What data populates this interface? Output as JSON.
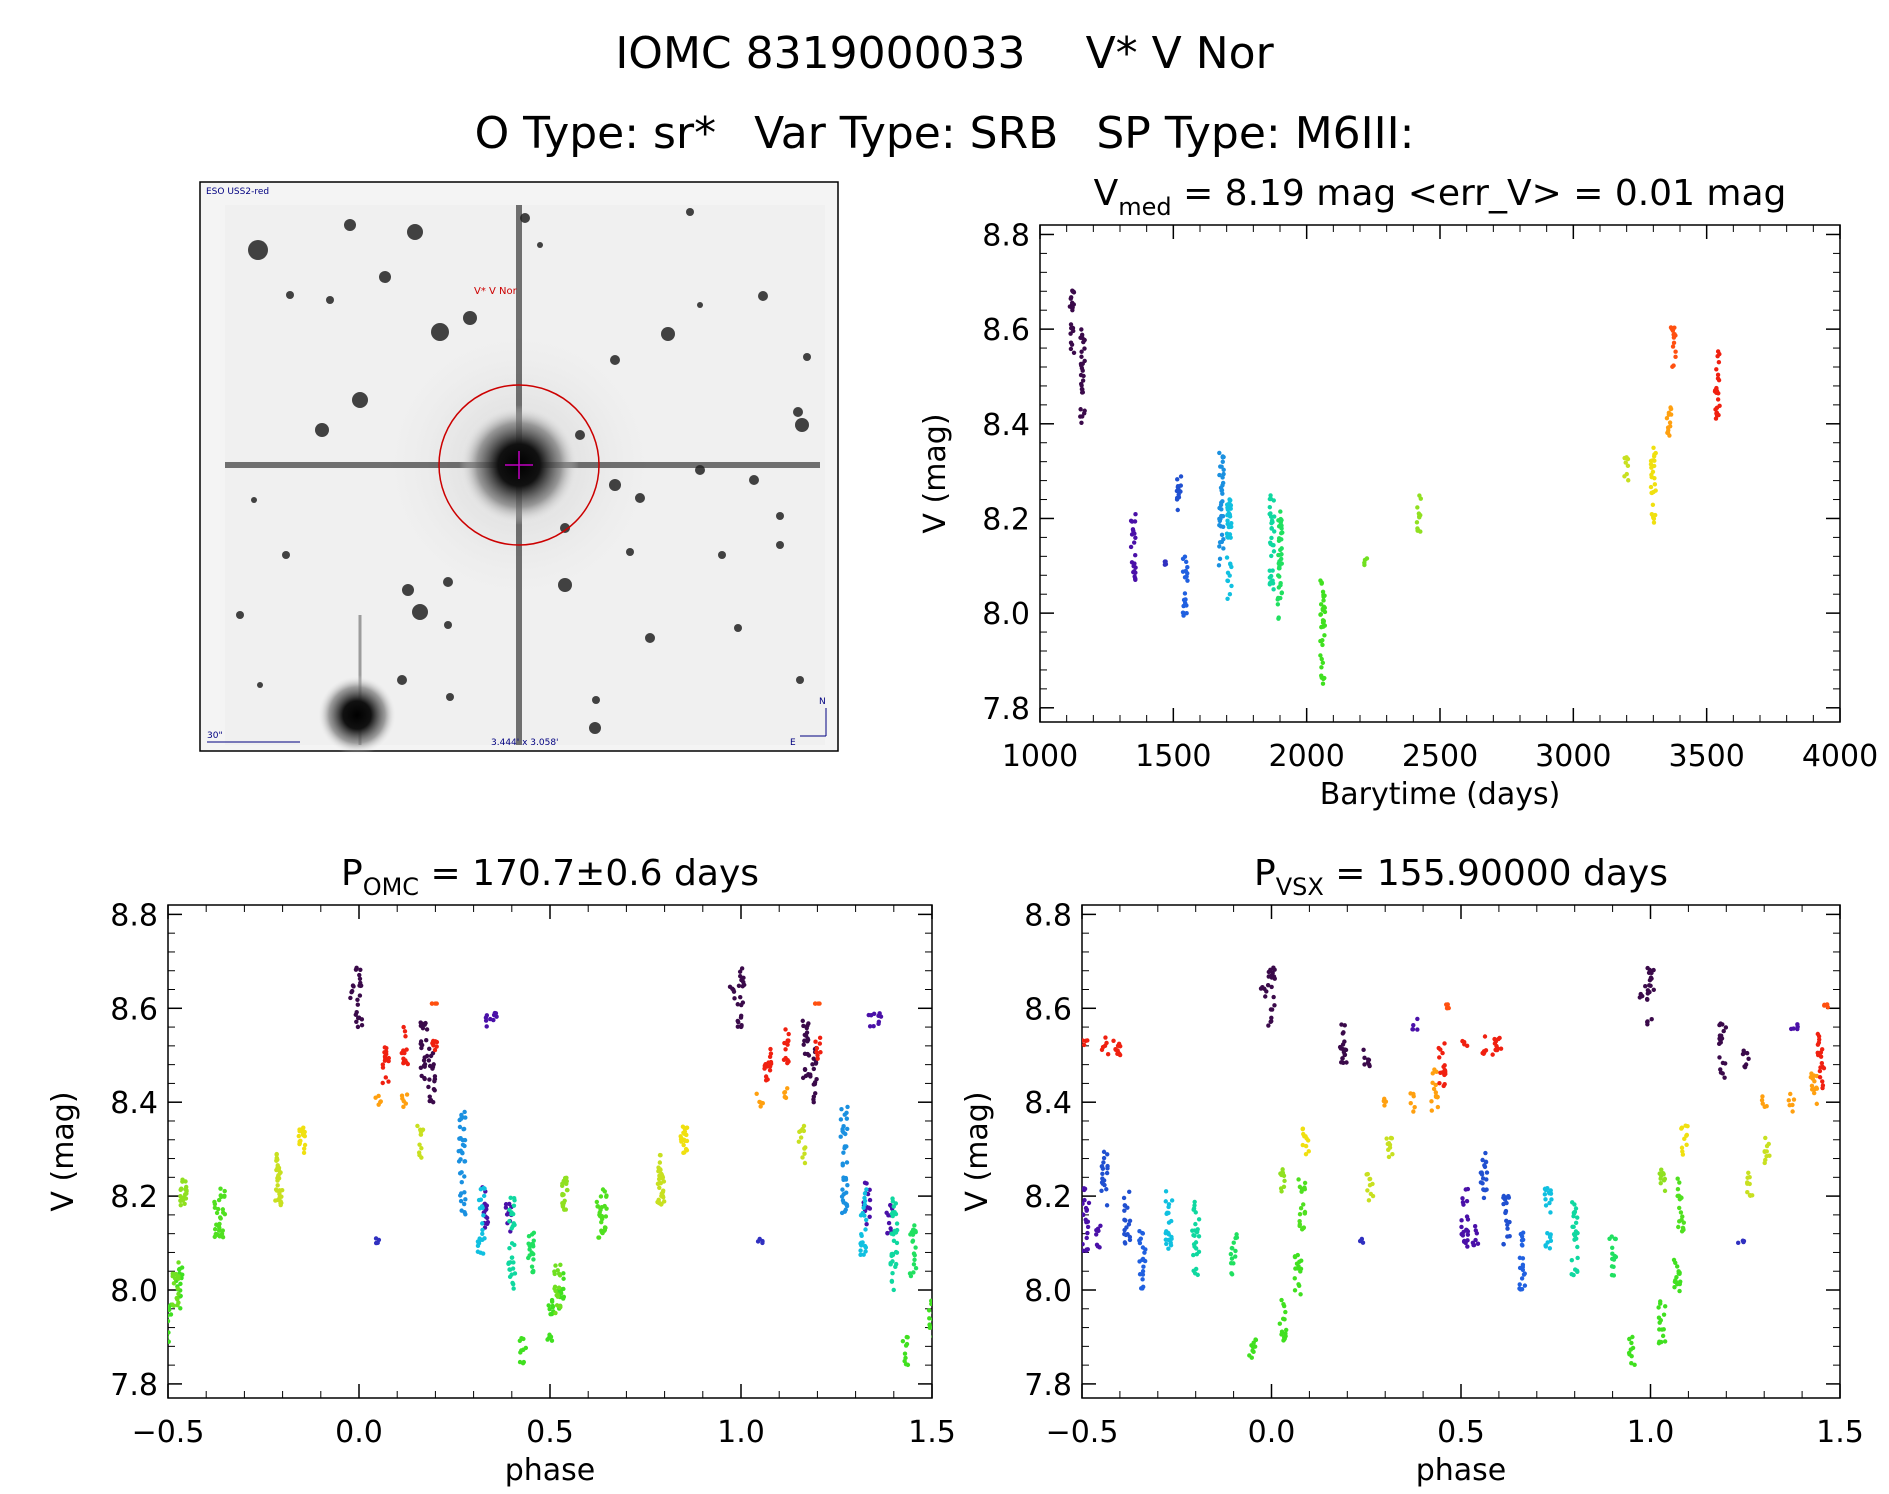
{
  "header": {
    "id_label": "IOMC 8319000033",
    "star_name": "V* V Nor",
    "otype": "O Type: sr*",
    "vartype": "Var Type: SRB",
    "sptype": "SP Type: M6III:"
  },
  "finder": {
    "survey": "ESO USS2-red",
    "target_label": "V* V Nor",
    "scale_label": "30\"",
    "fov_label": "3.444' x 3.058'",
    "north": "N",
    "east": "E"
  },
  "colors": {
    "axis": "#000000",
    "circle": "#cc0000",
    "finder_text": "#000080"
  },
  "chart_data": [
    {
      "id": "lightcurve",
      "type": "scatter",
      "title_main": "V",
      "title_sub": "med",
      "title_rest": " = 8.19 mag <err_V> = 0.01 mag",
      "xlabel": "Barytime (days)",
      "ylabel": "V (mag)",
      "xlim": [
        1000,
        4000
      ],
      "ylim": [
        8.82,
        7.77
      ],
      "xticks": [
        1000,
        1500,
        2000,
        2500,
        3000,
        3500,
        4000
      ],
      "xticklabels": [
        "1000",
        "1500",
        "2000",
        "2500",
        "3000",
        "3500",
        "4000"
      ],
      "yticks": [
        7.8,
        8.0,
        8.2,
        8.4,
        8.6,
        8.8
      ],
      "yticklabels": [
        "7.8",
        "8.0",
        "8.2",
        "8.4",
        "8.6",
        "8.8"
      ],
      "groups": [
        {
          "t": 1120,
          "v_min": 8.55,
          "v_max": 8.69,
          "color": "#3a0a4a"
        },
        {
          "t": 1160,
          "v_min": 8.4,
          "v_max": 8.6,
          "color": "#3a0a4a"
        },
        {
          "t": 1350,
          "v_min": 8.07,
          "v_max": 8.21,
          "color": "#4a10a8"
        },
        {
          "t": 1470,
          "v_min": 8.1,
          "v_max": 8.11,
          "color": "#3030c0"
        },
        {
          "t": 1520,
          "v_min": 8.2,
          "v_max": 8.29,
          "color": "#2050d0"
        },
        {
          "t": 1545,
          "v_min": 7.99,
          "v_max": 8.12,
          "color": "#2060e0"
        },
        {
          "t": 1680,
          "v_min": 8.1,
          "v_max": 8.34,
          "color": "#1a90e0"
        },
        {
          "t": 1710,
          "v_min": 8.03,
          "v_max": 8.25,
          "color": "#10c0e0"
        },
        {
          "t": 1870,
          "v_min": 8.05,
          "v_max": 8.25,
          "color": "#10d8a0"
        },
        {
          "t": 1900,
          "v_min": 7.98,
          "v_max": 8.23,
          "color": "#20e060"
        },
        {
          "t": 2060,
          "v_min": 7.84,
          "v_max": 8.07,
          "color": "#40e020"
        },
        {
          "t": 2220,
          "v_min": 8.1,
          "v_max": 8.12,
          "color": "#70e020"
        },
        {
          "t": 2420,
          "v_min": 8.17,
          "v_max": 8.25,
          "color": "#90e020"
        },
        {
          "t": 3200,
          "v_min": 8.28,
          "v_max": 8.33,
          "color": "#c8e020"
        },
        {
          "t": 3300,
          "v_min": 8.18,
          "v_max": 8.35,
          "color": "#f0e010"
        },
        {
          "t": 3360,
          "v_min": 8.37,
          "v_max": 8.46,
          "color": "#ffa010"
        },
        {
          "t": 3375,
          "v_min": 8.52,
          "v_max": 8.61,
          "color": "#ff5010"
        },
        {
          "t": 3540,
          "v_min": 8.41,
          "v_max": 8.56,
          "color": "#f02010"
        }
      ]
    },
    {
      "id": "phase_omc",
      "type": "scatter",
      "title_main": "P",
      "title_sub": "OMC",
      "title_rest": " = 170.7±0.6 days",
      "xlabel": "phase",
      "ylabel": "V (mag)",
      "xlim": [
        -0.5,
        1.5
      ],
      "ylim": [
        8.82,
        7.77
      ],
      "xticks": [
        -0.5,
        0.0,
        0.5,
        1.0,
        1.5
      ],
      "xticklabels": [
        "−0.5",
        "0.0",
        "0.5",
        "1.0",
        "1.5"
      ],
      "yticks": [
        7.8,
        8.0,
        8.2,
        8.4,
        8.6,
        8.8
      ],
      "yticklabels": [
        "7.8",
        "8.0",
        "8.2",
        "8.4",
        "8.6",
        "8.8"
      ],
      "groups": [
        {
          "phase": 0.0,
          "v_min": 8.56,
          "v_max": 8.69,
          "color": "#3a0a4a"
        },
        {
          "phase": -0.02,
          "v_min": 8.62,
          "v_max": 8.65,
          "color": "#3a0a4a"
        },
        {
          "phase": 0.05,
          "v_min": 8.1,
          "v_max": 8.11,
          "color": "#3030c0"
        },
        {
          "phase": 0.17,
          "v_min": 8.44,
          "v_max": 8.58,
          "color": "#3a0a4a"
        },
        {
          "phase": 0.19,
          "v_min": 8.4,
          "v_max": 8.52,
          "color": "#3a0a4a"
        },
        {
          "phase": 0.34,
          "v_min": 8.56,
          "v_max": 8.59,
          "color": "#4a10a8"
        },
        {
          "phase": 0.36,
          "v_min": 8.56,
          "v_max": 8.59,
          "color": "#4a10a8"
        },
        {
          "phase": 0.33,
          "v_min": 8.13,
          "v_max": 8.23,
          "color": "#4a10a8"
        },
        {
          "phase": 0.39,
          "v_min": 8.12,
          "v_max": 8.19,
          "color": "#4a10a8"
        },
        {
          "phase": 0.27,
          "v_min": 8.16,
          "v_max": 8.39,
          "color": "#1a90e0"
        },
        {
          "phase": 0.32,
          "v_min": 8.07,
          "v_max": 8.22,
          "color": "#10c0e0"
        },
        {
          "phase": 0.4,
          "v_min": 8.0,
          "v_max": 8.2,
          "color": "#10d8a0"
        },
        {
          "phase": 0.45,
          "v_min": 8.02,
          "v_max": 8.14,
          "color": "#20e060"
        },
        {
          "phase": 0.43,
          "v_min": 7.84,
          "v_max": 7.9,
          "color": "#40e020"
        },
        {
          "phase": 0.5,
          "v_min": 7.89,
          "v_max": 7.98,
          "color": "#40e020"
        },
        {
          "phase": 0.53,
          "v_min": 7.96,
          "v_max": 8.05,
          "color": "#40e020"
        },
        {
          "phase": -0.48,
          "v_min": 7.95,
          "v_max": 8.06,
          "color": "#70e020"
        },
        {
          "phase": -0.46,
          "v_min": 8.17,
          "v_max": 8.24,
          "color": "#90e020"
        },
        {
          "phase": 0.54,
          "v_min": 8.17,
          "v_max": 8.24,
          "color": "#90e020"
        },
        {
          "phase": -0.37,
          "v_min": 8.11,
          "v_max": 8.19,
          "color": "#50e020"
        },
        {
          "phase": 0.64,
          "v_min": 8.11,
          "v_max": 8.22,
          "color": "#50e020"
        },
        {
          "phase": -0.21,
          "v_min": 8.18,
          "v_max": 8.29,
          "color": "#c8e020"
        },
        {
          "phase": 0.79,
          "v_min": 8.18,
          "v_max": 8.29,
          "color": "#c8e020"
        },
        {
          "phase": -0.15,
          "v_min": 8.29,
          "v_max": 8.35,
          "color": "#f0e010"
        },
        {
          "phase": 0.85,
          "v_min": 8.29,
          "v_max": 8.35,
          "color": "#f0e010"
        },
        {
          "phase": 0.16,
          "v_min": 8.27,
          "v_max": 8.35,
          "color": "#c8e020"
        },
        {
          "phase": 0.05,
          "v_min": 8.39,
          "v_max": 8.42,
          "color": "#ffa010"
        },
        {
          "phase": 0.12,
          "v_min": 8.39,
          "v_max": 8.43,
          "color": "#ffa010"
        },
        {
          "phase": 0.07,
          "v_min": 8.44,
          "v_max": 8.54,
          "color": "#f02010"
        },
        {
          "phase": 0.12,
          "v_min": 8.48,
          "v_max": 8.56,
          "color": "#f02010"
        },
        {
          "phase": 0.2,
          "v_min": 8.49,
          "v_max": 8.54,
          "color": "#f02010"
        },
        {
          "phase": 0.2,
          "v_min": 8.61,
          "v_max": 8.61,
          "color": "#ff5010"
        }
      ]
    },
    {
      "id": "phase_vsx",
      "type": "scatter",
      "title_main": "P",
      "title_sub": "VSX",
      "title_rest": " = 155.90000 days",
      "xlabel": "phase",
      "ylabel": "V (mag)",
      "xlim": [
        -0.5,
        1.5
      ],
      "ylim": [
        8.82,
        7.77
      ],
      "xticks": [
        -0.5,
        0.0,
        0.5,
        1.0,
        1.5
      ],
      "xticklabels": [
        "−0.5",
        "0.0",
        "0.5",
        "1.0",
        "1.5"
      ],
      "yticks": [
        7.8,
        8.0,
        8.2,
        8.4,
        8.6,
        8.8
      ],
      "yticklabels": [
        "7.8",
        "8.0",
        "8.2",
        "8.4",
        "8.6",
        "8.8"
      ],
      "groups": [
        {
          "phase": 0.0,
          "v_min": 8.56,
          "v_max": 8.69,
          "color": "#3a0a4a"
        },
        {
          "phase": -0.02,
          "v_min": 8.62,
          "v_max": 8.65,
          "color": "#3a0a4a"
        },
        {
          "phase": 0.19,
          "v_min": 8.45,
          "v_max": 8.57,
          "color": "#3a0a4a"
        },
        {
          "phase": 0.25,
          "v_min": 8.47,
          "v_max": 8.52,
          "color": "#3a0a4a"
        },
        {
          "phase": -0.49,
          "v_min": 8.08,
          "v_max": 8.22,
          "color": "#4a10a8"
        },
        {
          "phase": -0.46,
          "v_min": 8.09,
          "v_max": 8.14,
          "color": "#4a10a8"
        },
        {
          "phase": -0.44,
          "v_min": 8.18,
          "v_max": 8.3,
          "color": "#2050d0"
        },
        {
          "phase": -0.38,
          "v_min": 8.09,
          "v_max": 8.21,
          "color": "#2050d0"
        },
        {
          "phase": -0.34,
          "v_min": 8.0,
          "v_max": 8.13,
          "color": "#2060e0"
        },
        {
          "phase": -0.27,
          "v_min": 8.08,
          "v_max": 8.22,
          "color": "#10c0e0"
        },
        {
          "phase": -0.2,
          "v_min": 8.03,
          "v_max": 8.19,
          "color": "#10d8a0"
        },
        {
          "phase": -0.1,
          "v_min": 8.03,
          "v_max": 8.12,
          "color": "#20e060"
        },
        {
          "phase": -0.05,
          "v_min": 7.84,
          "v_max": 7.9,
          "color": "#40e020"
        },
        {
          "phase": 0.03,
          "v_min": 7.88,
          "v_max": 7.98,
          "color": "#40e020"
        },
        {
          "phase": 0.07,
          "v_min": 7.98,
          "v_max": 8.08,
          "color": "#40e020"
        },
        {
          "phase": 0.08,
          "v_min": 8.12,
          "v_max": 8.24,
          "color": "#50e020"
        },
        {
          "phase": 0.03,
          "v_min": 8.21,
          "v_max": 8.27,
          "color": "#90e020"
        },
        {
          "phase": 0.09,
          "v_min": 8.28,
          "v_max": 8.35,
          "color": "#f0e010"
        },
        {
          "phase": 0.24,
          "v_min": 8.1,
          "v_max": 8.11,
          "color": "#3030c0"
        },
        {
          "phase": 0.26,
          "v_min": 8.19,
          "v_max": 8.25,
          "color": "#c8e020"
        },
        {
          "phase": 0.31,
          "v_min": 8.27,
          "v_max": 8.33,
          "color": "#c8e020"
        },
        {
          "phase": 0.3,
          "v_min": 8.39,
          "v_max": 8.42,
          "color": "#ffa010"
        },
        {
          "phase": 0.37,
          "v_min": 8.38,
          "v_max": 8.42,
          "color": "#ffa010"
        },
        {
          "phase": 0.43,
          "v_min": 8.38,
          "v_max": 8.47,
          "color": "#ffa010"
        },
        {
          "phase": 0.45,
          "v_min": 8.43,
          "v_max": 8.55,
          "color": "#f02010"
        },
        {
          "phase": 0.56,
          "v_min": 8.5,
          "v_max": 8.54,
          "color": "#f02010"
        },
        {
          "phase": 0.6,
          "v_min": 8.5,
          "v_max": 8.54,
          "color": "#f02010"
        },
        {
          "phase": -0.49,
          "v_min": 8.52,
          "v_max": 8.54,
          "color": "#f02010"
        },
        {
          "phase": -0.41,
          "v_min": 8.5,
          "v_max": 8.54,
          "color": "#f02010"
        },
        {
          "phase": 0.38,
          "v_min": 8.55,
          "v_max": 8.58,
          "color": "#4a10a8"
        },
        {
          "phase": 0.46,
          "v_min": 8.6,
          "v_max": 8.61,
          "color": "#ff5010"
        }
      ]
    }
  ]
}
